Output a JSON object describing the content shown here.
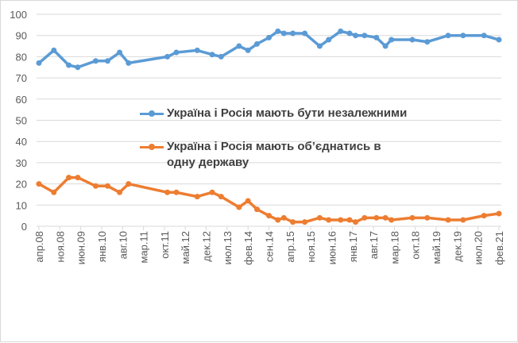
{
  "chart_data": {
    "type": "line",
    "title": "",
    "xlabel": "",
    "ylabel": "",
    "ylim": [
      0,
      100
    ],
    "yticks": [
      0,
      10,
      20,
      30,
      40,
      50,
      60,
      70,
      80,
      90,
      100
    ],
    "grid": true,
    "legend_placement": "center",
    "xtick_labels": [
      "апр.08",
      "ноя.08",
      "июн.09",
      "янв.10",
      "авг.10",
      "мар.11",
      "окт.11",
      "май.12",
      "дек.12",
      "июл.13",
      "фев.14",
      "сен.14",
      "апр.15",
      "ноя.15",
      "июн.16",
      "янв.17",
      "авг.17",
      "мар.18",
      "окт.18",
      "май.19",
      "дек.19",
      "июл.20",
      "фев.21"
    ],
    "xtick_dates": [
      "2008-04",
      "2008-11",
      "2009-06",
      "2010-01",
      "2010-08",
      "2011-03",
      "2011-10",
      "2012-05",
      "2012-12",
      "2013-07",
      "2014-02",
      "2014-09",
      "2015-04",
      "2015-11",
      "2016-06",
      "2017-01",
      "2017-08",
      "2018-03",
      "2018-10",
      "2019-05",
      "2019-12",
      "2020-07",
      "2021-02"
    ],
    "x": [
      "2008-04",
      "2008-09",
      "2009-02",
      "2009-05",
      "2009-11",
      "2010-03",
      "2010-07",
      "2010-10",
      "2011-11",
      "2012-02",
      "2012-09",
      "2013-02",
      "2013-05",
      "2013-11",
      "2014-02",
      "2014-05",
      "2014-09",
      "2014-12",
      "2015-02",
      "2015-05",
      "2015-09",
      "2016-02",
      "2016-05",
      "2016-09",
      "2016-12",
      "2017-02",
      "2017-05",
      "2017-09",
      "2017-12",
      "2018-02",
      "2018-09",
      "2019-02",
      "2019-09",
      "2020-02",
      "2020-09",
      "2021-02"
    ],
    "series": [
      {
        "name": "Україна і Росія мають бути незалежними",
        "color": "#5b9bd5",
        "values": [
          77,
          83,
          76,
          75,
          78,
          78,
          82,
          77,
          80,
          82,
          83,
          81,
          80,
          85,
          83,
          86,
          89,
          92,
          91,
          91,
          91,
          85,
          88,
          92,
          91,
          90,
          90,
          89,
          85,
          88,
          88,
          87,
          90,
          90,
          90,
          88
        ]
      },
      {
        "name": "Україна і Росія мають об’єднатись в одну державу",
        "color": "#ed7d31",
        "values": [
          20,
          16,
          23,
          23,
          19,
          19,
          16,
          20,
          16,
          16,
          14,
          16,
          14,
          9,
          12,
          8,
          5,
          3,
          4,
          2,
          2,
          4,
          3,
          3,
          3,
          2,
          4,
          4,
          4,
          3,
          4,
          4,
          3,
          3,
          5,
          6
        ]
      }
    ]
  }
}
